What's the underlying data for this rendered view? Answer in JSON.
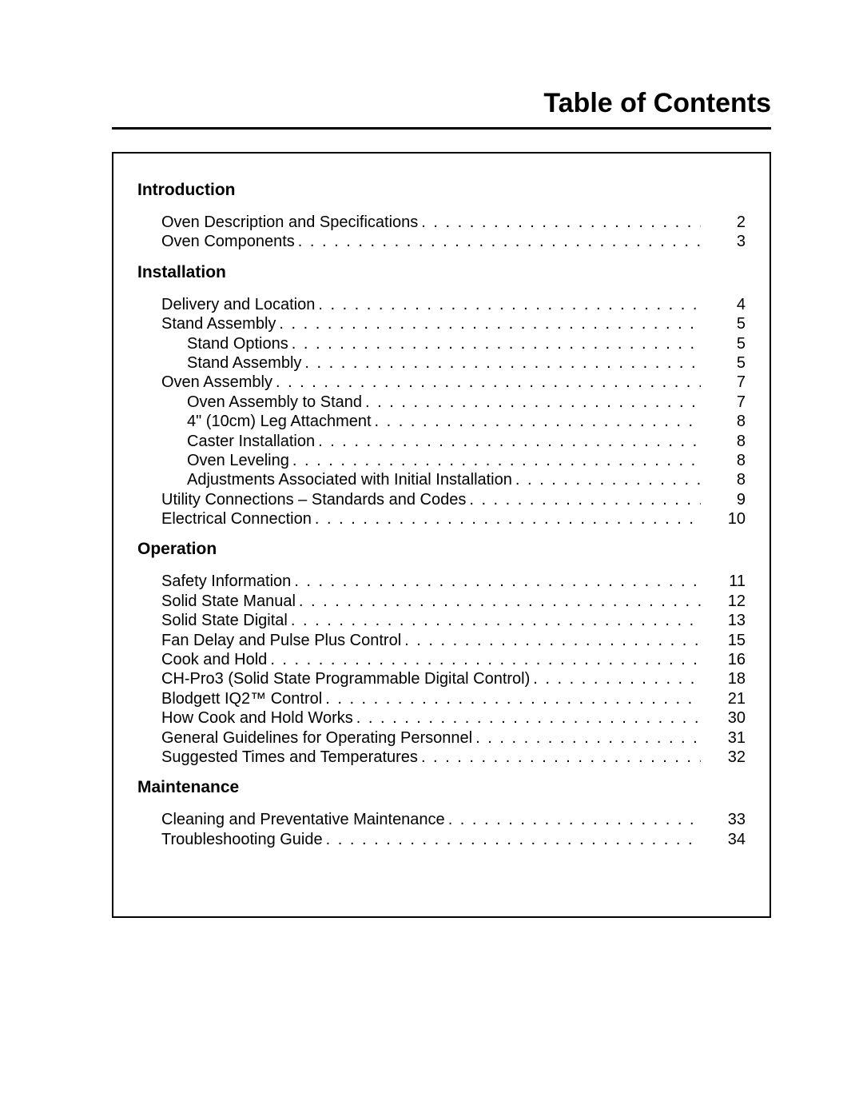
{
  "title": "Table of Contents",
  "dot_fill": ". . . . . . . . . . . . . . . . . . . . . . . . . . . . . . . . . . . . . . . . . . . . . . . . . . . . . . . . . . . . . . . . . . . . . . . . . . . . . . . . . . . . . . . . . . . . . . . . . . . . . . . . . . . . . . . . . . . . . . . . . . . . . . . . . . . . . . . . . . . . . . . . . . . . . . . . . . . . . . . . . . . . . . . . . . . . . . . . . . . . . . . . . . . . . .",
  "sections": [
    {
      "heading": "Introduction",
      "entries": [
        {
          "level": 1,
          "label": "Oven Description and Specifications",
          "page": "2"
        },
        {
          "level": 1,
          "label": "Oven Components",
          "page": "3"
        }
      ]
    },
    {
      "heading": "Installation",
      "entries": [
        {
          "level": 1,
          "label": "Delivery and Location",
          "page": "4"
        },
        {
          "level": 1,
          "label": "Stand Assembly",
          "page": "5"
        },
        {
          "level": 2,
          "label": "Stand Options",
          "page": "5"
        },
        {
          "level": 2,
          "label": "Stand Assembly",
          "page": "5"
        },
        {
          "level": 1,
          "label": "Oven Assembly",
          "page": "7"
        },
        {
          "level": 2,
          "label": "Oven Assembly to Stand",
          "page": "7"
        },
        {
          "level": 2,
          "label": "4\" (10cm) Leg Attachment",
          "page": "8"
        },
        {
          "level": 2,
          "label": "Caster Installation",
          "page": "8"
        },
        {
          "level": 2,
          "label": "Oven Leveling",
          "page": "8"
        },
        {
          "level": 2,
          "label": "Adjustments Associated with  Initial Installation",
          "page": "8"
        },
        {
          "level": 1,
          "label": "Utility Connections – Standards and Codes",
          "page": "9"
        },
        {
          "level": 1,
          "label": "Electrical Connection",
          "page": "10"
        }
      ]
    },
    {
      "heading": "Operation",
      "entries": [
        {
          "level": 1,
          "label": "Safety Information",
          "page": "11"
        },
        {
          "level": 1,
          "label": "Solid State Manual",
          "page": "12"
        },
        {
          "level": 1,
          "label": "Solid State Digital",
          "page": "13"
        },
        {
          "level": 1,
          "label": "Fan Delay and Pulse Plus Control",
          "page": "15"
        },
        {
          "level": 1,
          "label": "Cook and Hold",
          "page": "16"
        },
        {
          "level": 1,
          "label": "CH-Pro3 (Solid State Programmable Digital Control)",
          "page": "18"
        },
        {
          "level": 1,
          "label": "Blodgett IQ2™ Control",
          "page": "21"
        },
        {
          "level": 1,
          "label": "How Cook and Hold Works",
          "page": "30"
        },
        {
          "level": 1,
          "label": "General Guidelines for Operating Personnel",
          "page": "31"
        },
        {
          "level": 1,
          "label": "Suggested Times and Temperatures",
          "page": "32"
        }
      ]
    },
    {
      "heading": "Maintenance",
      "entries": [
        {
          "level": 1,
          "label": "Cleaning and Preventative Maintenance",
          "page": "33"
        },
        {
          "level": 1,
          "label": "Troubleshooting Guide",
          "page": "34"
        }
      ]
    }
  ]
}
